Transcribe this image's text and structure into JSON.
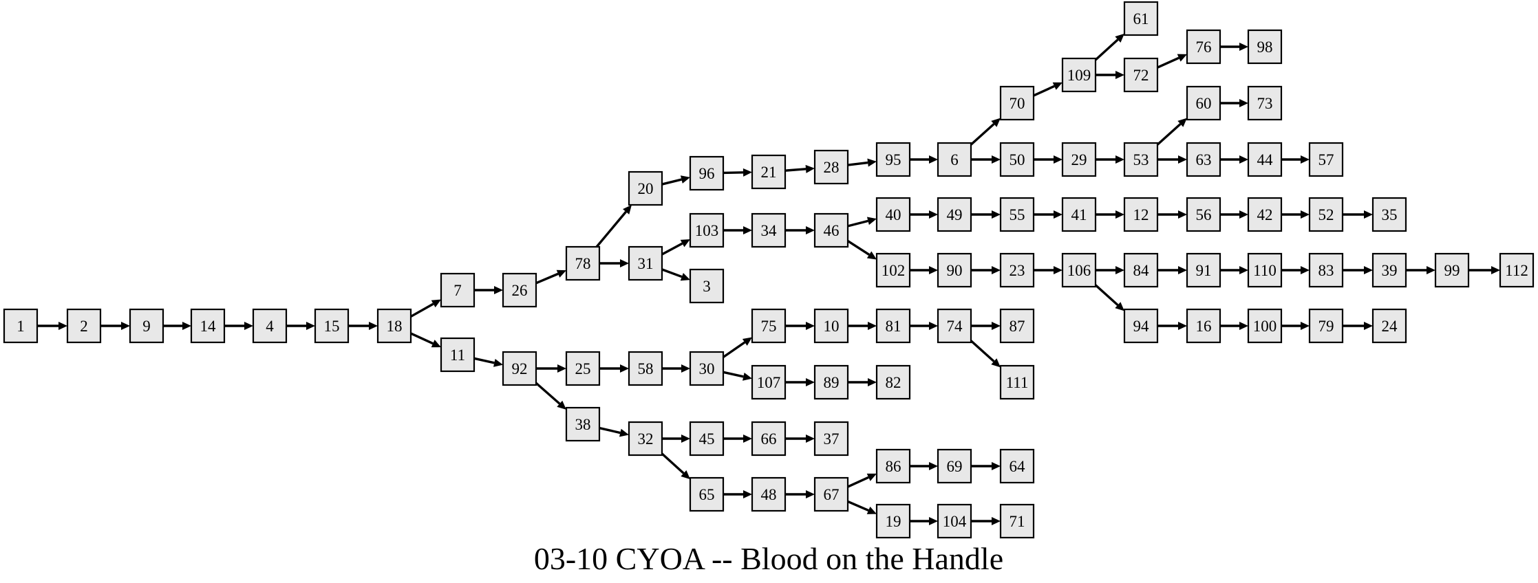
{
  "diagram": {
    "title": "03-10 CYOA -- Blood on the Handle",
    "nodes": [
      "1",
      "2",
      "9",
      "14",
      "4",
      "15",
      "18",
      "7",
      "11",
      "26",
      "92",
      "78",
      "25",
      "38",
      "20",
      "31",
      "58",
      "32",
      "96",
      "103",
      "3",
      "30",
      "45",
      "65",
      "21",
      "34",
      "75",
      "107",
      "66",
      "48",
      "28",
      "46",
      "10",
      "89",
      "37",
      "67",
      "95",
      "40",
      "102",
      "81",
      "82",
      "86",
      "19",
      "6",
      "49",
      "90",
      "74",
      "69",
      "104",
      "70",
      "50",
      "55",
      "23",
      "87",
      "111",
      "64",
      "71",
      "109",
      "29",
      "41",
      "106",
      "61",
      "72",
      "53",
      "12",
      "84",
      "94",
      "76",
      "60",
      "63",
      "56",
      "91",
      "16",
      "98",
      "73",
      "44",
      "42",
      "110",
      "100",
      "57",
      "52",
      "83",
      "79",
      "35",
      "39",
      "24",
      "99",
      "112"
    ],
    "edges": [
      [
        "1",
        "2"
      ],
      [
        "2",
        "9"
      ],
      [
        "9",
        "14"
      ],
      [
        "14",
        "4"
      ],
      [
        "4",
        "15"
      ],
      [
        "15",
        "18"
      ],
      [
        "18",
        "7"
      ],
      [
        "18",
        "11"
      ],
      [
        "7",
        "26"
      ],
      [
        "11",
        "92"
      ],
      [
        "26",
        "78"
      ],
      [
        "92",
        "25"
      ],
      [
        "92",
        "38"
      ],
      [
        "78",
        "20"
      ],
      [
        "78",
        "31"
      ],
      [
        "25",
        "58"
      ],
      [
        "38",
        "32"
      ],
      [
        "20",
        "96"
      ],
      [
        "31",
        "103"
      ],
      [
        "31",
        "3"
      ],
      [
        "58",
        "30"
      ],
      [
        "32",
        "45"
      ],
      [
        "32",
        "65"
      ],
      [
        "96",
        "21"
      ],
      [
        "103",
        "34"
      ],
      [
        "30",
        "75"
      ],
      [
        "30",
        "107"
      ],
      [
        "45",
        "66"
      ],
      [
        "65",
        "48"
      ],
      [
        "21",
        "28"
      ],
      [
        "34",
        "46"
      ],
      [
        "75",
        "10"
      ],
      [
        "107",
        "89"
      ],
      [
        "66",
        "37"
      ],
      [
        "48",
        "67"
      ],
      [
        "28",
        "95"
      ],
      [
        "46",
        "40"
      ],
      [
        "46",
        "102"
      ],
      [
        "10",
        "81"
      ],
      [
        "89",
        "82"
      ],
      [
        "67",
        "86"
      ],
      [
        "67",
        "19"
      ],
      [
        "95",
        "6"
      ],
      [
        "40",
        "49"
      ],
      [
        "102",
        "90"
      ],
      [
        "81",
        "74"
      ],
      [
        "86",
        "69"
      ],
      [
        "19",
        "104"
      ],
      [
        "6",
        "70"
      ],
      [
        "6",
        "50"
      ],
      [
        "49",
        "55"
      ],
      [
        "90",
        "23"
      ],
      [
        "74",
        "87"
      ],
      [
        "74",
        "111"
      ],
      [
        "69",
        "64"
      ],
      [
        "104",
        "71"
      ],
      [
        "70",
        "109"
      ],
      [
        "50",
        "29"
      ],
      [
        "55",
        "41"
      ],
      [
        "23",
        "106"
      ],
      [
        "109",
        "61"
      ],
      [
        "109",
        "72"
      ],
      [
        "29",
        "53"
      ],
      [
        "41",
        "12"
      ],
      [
        "106",
        "84"
      ],
      [
        "106",
        "94"
      ],
      [
        "72",
        "76"
      ],
      [
        "53",
        "60"
      ],
      [
        "53",
        "63"
      ],
      [
        "12",
        "56"
      ],
      [
        "84",
        "91"
      ],
      [
        "94",
        "16"
      ],
      [
        "76",
        "98"
      ],
      [
        "60",
        "73"
      ],
      [
        "63",
        "44"
      ],
      [
        "56",
        "42"
      ],
      [
        "91",
        "110"
      ],
      [
        "16",
        "100"
      ],
      [
        "44",
        "57"
      ],
      [
        "42",
        "52"
      ],
      [
        "110",
        "83"
      ],
      [
        "100",
        "79"
      ],
      [
        "52",
        "35"
      ],
      [
        "83",
        "39"
      ],
      [
        "79",
        "24"
      ],
      [
        "39",
        "99"
      ],
      [
        "99",
        "112"
      ]
    ]
  }
}
